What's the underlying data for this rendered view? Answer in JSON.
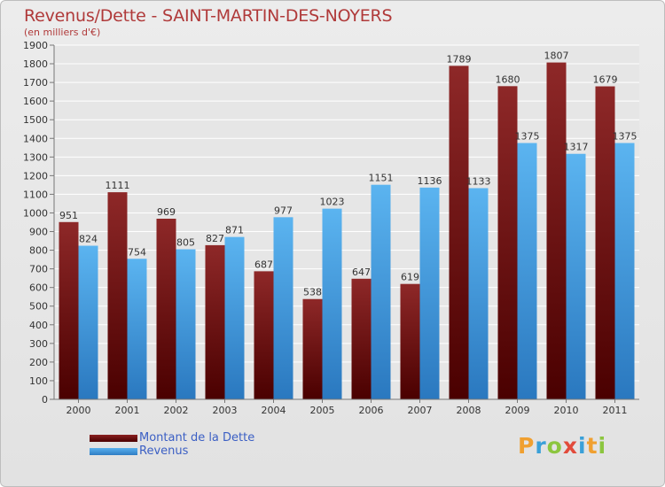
{
  "chart_data": {
    "type": "bar",
    "title": "Revenus/Dette - SAINT-MARTIN-DES-NOYERS",
    "subtitle": "(en milliers d'€)",
    "categories": [
      "2000",
      "2001",
      "2002",
      "2003",
      "2004",
      "2005",
      "2006",
      "2007",
      "2008",
      "2009",
      "2010",
      "2011"
    ],
    "series": [
      {
        "name": "Montant de la Dette",
        "values": [
          951,
          1111,
          969,
          827,
          687,
          538,
          647,
          619,
          1789,
          1680,
          1807,
          1679
        ],
        "color": "#7a1f1f"
      },
      {
        "name": "Revenus",
        "values": [
          824,
          754,
          805,
          871,
          977,
          1023,
          1151,
          1136,
          1133,
          1375,
          1317,
          1375
        ],
        "color": "#4aa3e6"
      }
    ],
    "ylim": [
      0,
      1900
    ],
    "yticks": [
      0,
      100,
      200,
      300,
      400,
      500,
      600,
      700,
      800,
      900,
      1000,
      1100,
      1200,
      1300,
      1400,
      1500,
      1600,
      1700,
      1800,
      1900
    ],
    "grid": true,
    "legend_position": "bottom-left"
  },
  "logo": {
    "letters": [
      "P",
      "r",
      "o",
      "x",
      "i",
      "t",
      "i"
    ],
    "colors": [
      "#f0a030",
      "#3aa0d8",
      "#8cc63f",
      "#e24b3b",
      "#3aa0d8",
      "#f0a030",
      "#8cc63f"
    ]
  }
}
